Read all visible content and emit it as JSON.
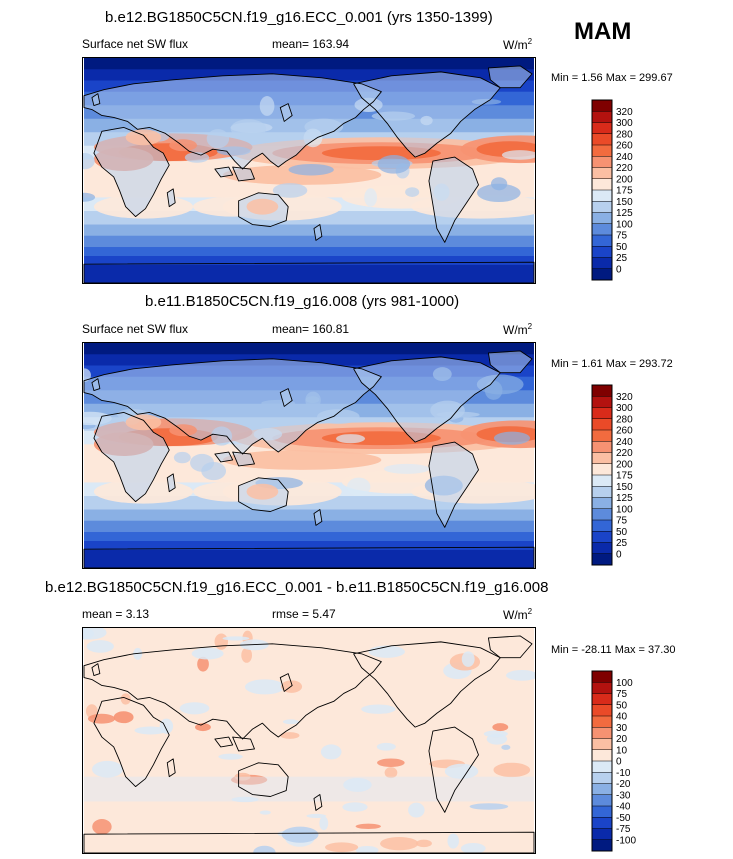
{
  "season": "MAM",
  "chart_data": [
    {
      "type": "heatmap",
      "title": "b.e12.BG1850C5CN.f19_g16.ECC_0.001 (yrs 1350-1399)",
      "variable": "Surface net SW flux",
      "mean_text": "mean= 163.94",
      "units": "W/m",
      "units_sup": "2",
      "minmax_text": "Min =   1.56 Max = 299.67",
      "min": 1.56,
      "max": 299.67,
      "levels": [
        "320",
        "300",
        "280",
        "260",
        "240",
        "220",
        "200",
        "175",
        "150",
        "125",
        "100",
        "75",
        "50",
        "25",
        "0"
      ],
      "colors": [
        "#7f0000",
        "#b3120f",
        "#d92b1a",
        "#ea4a28",
        "#f26b3f",
        "#f69272",
        "#fbbfa3",
        "#fde8da",
        "#dbe9f6",
        "#b7d0ee",
        "#8ab0e4",
        "#5d8bdc",
        "#3366d6",
        "#1a44c8",
        "#0a2aaa",
        "#001a80"
      ],
      "style": "sw"
    },
    {
      "type": "heatmap",
      "title": "b.e11.B1850C5CN.f19_g16.008 (yrs 981-1000)",
      "variable": "Surface net SW flux",
      "mean_text": "mean= 160.81",
      "units": "W/m",
      "units_sup": "2",
      "minmax_text": "Min =   1.61 Max = 293.72",
      "min": 1.61,
      "max": 293.72,
      "levels": [
        "320",
        "300",
        "280",
        "260",
        "240",
        "220",
        "200",
        "175",
        "150",
        "125",
        "100",
        "75",
        "50",
        "25",
        "0"
      ],
      "colors": [
        "#7f0000",
        "#b3120f",
        "#d92b1a",
        "#ea4a28",
        "#f26b3f",
        "#f69272",
        "#fbbfa3",
        "#fde8da",
        "#dbe9f6",
        "#b7d0ee",
        "#8ab0e4",
        "#5d8bdc",
        "#3366d6",
        "#1a44c8",
        "#0a2aaa",
        "#001a80"
      ],
      "style": "sw"
    },
    {
      "type": "heatmap",
      "title": "b.e12.BG1850C5CN.f19_g16.ECC_0.001 - b.e11.B1850C5CN.f19_g16.008",
      "mean_text": "mean =   3.13",
      "rmse_text": "rmse =   5.47",
      "units": "W/m",
      "units_sup": "2",
      "minmax_text": "Min = -28.11 Max =  37.30",
      "min": -28.11,
      "max": 37.3,
      "levels": [
        "100",
        "75",
        "50",
        "40",
        "30",
        "20",
        "10",
        "0",
        "-10",
        "-20",
        "-30",
        "-40",
        "-50",
        "-75",
        "-100"
      ],
      "colors": [
        "#7f0000",
        "#b3120f",
        "#d92b1a",
        "#ea4a28",
        "#f26b3f",
        "#f69272",
        "#fbbfa3",
        "#fde8da",
        "#dbe9f6",
        "#b7d0ee",
        "#8ab0e4",
        "#5d8bdc",
        "#3366d6",
        "#1a44c8",
        "#0a2aaa",
        "#001a80"
      ],
      "style": "diff"
    }
  ]
}
